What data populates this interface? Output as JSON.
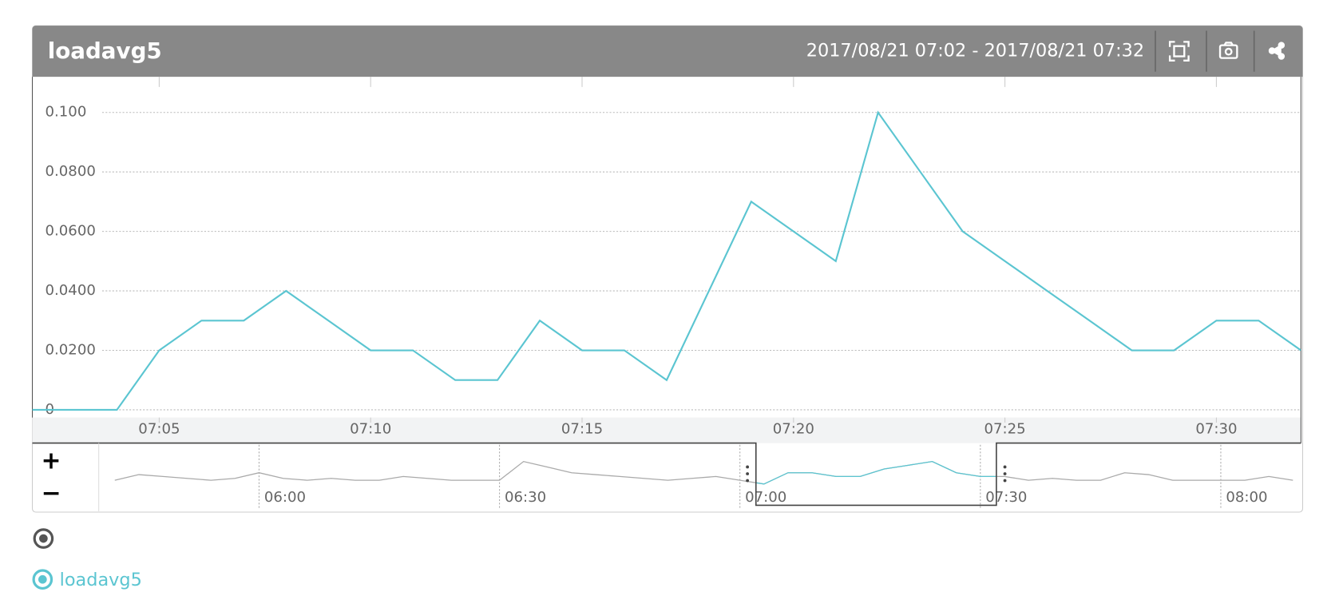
{
  "panel": {
    "title": "loadavg5",
    "range": "2017/08/21 07:02 - 2017/08/21 07:32"
  },
  "chart_data": {
    "type": "line",
    "x": [
      "07:02",
      "07:03",
      "07:04",
      "07:05",
      "07:06",
      "07:07",
      "07:08",
      "07:09",
      "07:10",
      "07:11",
      "07:12",
      "07:13",
      "07:14",
      "07:15",
      "07:16",
      "07:17",
      "07:18",
      "07:19",
      "07:20",
      "07:21",
      "07:22",
      "07:23",
      "07:24",
      "07:25",
      "07:26",
      "07:27",
      "07:28",
      "07:29",
      "07:30",
      "07:31",
      "07:32"
    ],
    "series": [
      {
        "name": "loadavg5",
        "color": "#5bc5d1",
        "values": [
          0,
          0,
          0,
          0.02,
          0.03,
          0.03,
          0.04,
          0.03,
          0.02,
          0.02,
          0.01,
          0.01,
          0.03,
          0.02,
          0.02,
          0.01,
          0.04,
          0.07,
          0.06,
          0.05,
          0.1,
          0.08,
          0.06,
          0.05,
          0.04,
          0.03,
          0.02,
          0.02,
          0.03,
          0.03,
          0.02
        ]
      }
    ],
    "xlim": [
      "07:02",
      "07:32"
    ],
    "xticks": [
      "07:05",
      "07:10",
      "07:15",
      "07:20",
      "07:25",
      "07:30"
    ],
    "ylim": [
      -0.0026,
      0.112
    ],
    "yticks": [
      {
        "value": 0,
        "label": "0"
      },
      {
        "value": 0.02,
        "label": "0.0200"
      },
      {
        "value": 0.04,
        "label": "0.0400"
      },
      {
        "value": 0.06,
        "label": "0.0600"
      },
      {
        "value": 0.08,
        "label": "0.0800"
      },
      {
        "value": 0.1,
        "label": "0.100"
      }
    ],
    "grid": true
  },
  "navigator": {
    "xlim": [
      "05:40",
      "08:10"
    ],
    "ylim": [
      0,
      0.1
    ],
    "xticks": [
      "06:00",
      "06:30",
      "07:00",
      "07:30",
      "08:00"
    ],
    "zoom_in": "+",
    "zoom_out": "−",
    "x": [
      "05:42",
      "05:45",
      "05:48",
      "05:51",
      "05:54",
      "05:57",
      "06:00",
      "06:03",
      "06:06",
      "06:09",
      "06:12",
      "06:15",
      "06:18",
      "06:21",
      "06:24",
      "06:27",
      "06:30",
      "06:33",
      "06:36",
      "06:39",
      "06:42",
      "06:45",
      "06:48",
      "06:51",
      "06:54",
      "06:57",
      "07:00",
      "07:03",
      "07:06",
      "07:09",
      "07:12",
      "07:15",
      "07:18",
      "07:21",
      "07:24",
      "07:27",
      "07:30",
      "07:33",
      "07:36",
      "07:39",
      "07:42",
      "07:45",
      "07:48",
      "07:51",
      "07:54",
      "07:57",
      "08:00",
      "08:03",
      "08:06",
      "08:09"
    ],
    "values": [
      0.01,
      0.025,
      0.02,
      0.015,
      0.01,
      0.015,
      0.03,
      0.015,
      0.01,
      0.015,
      0.01,
      0.01,
      0.02,
      0.015,
      0.01,
      0.01,
      0.01,
      0.06,
      0.045,
      0.03,
      0.025,
      0.02,
      0.015,
      0.01,
      0.015,
      0.02,
      0.01,
      0,
      0.03,
      0.03,
      0.02,
      0.02,
      0.04,
      0.05,
      0.06,
      0.03,
      0.02,
      0.02,
      0.01,
      0.015,
      0.01,
      0.01,
      0.03,
      0.025,
      0.01,
      0.01,
      0.01,
      0.01,
      0.02,
      0.01
    ]
  }
}
